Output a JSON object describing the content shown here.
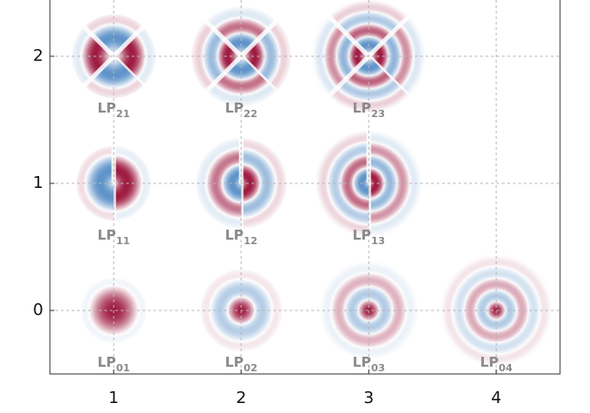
{
  "chart_data": {
    "type": "mode-map",
    "x": [
      1,
      2,
      3,
      4,
      1,
      2,
      3,
      1,
      2,
      3
    ],
    "y": [
      0,
      0,
      0,
      0,
      1,
      1,
      1,
      2,
      2,
      2
    ],
    "labels": [
      {
        "text": "LP",
        "sub": "01"
      },
      {
        "text": "LP",
        "sub": "02"
      },
      {
        "text": "LP",
        "sub": "03"
      },
      {
        "text": "LP",
        "sub": "04"
      },
      {
        "text": "LP",
        "sub": "11"
      },
      {
        "text": "LP",
        "sub": "12"
      },
      {
        "text": "LP",
        "sub": "13"
      },
      {
        "text": "LP",
        "sub": "21"
      },
      {
        "text": "LP",
        "sub": "22"
      },
      {
        "text": "LP",
        "sub": "23"
      }
    ],
    "colors": {
      "positive": "#9e1b42",
      "negative": "#5f93c9"
    },
    "xlim": [
      0.5,
      4.5
    ],
    "xticks": [
      1,
      2,
      3,
      4
    ],
    "ylim": [
      -0.5,
      2.5
    ],
    "yticks": [
      0,
      1,
      2
    ],
    "grid": true
  }
}
